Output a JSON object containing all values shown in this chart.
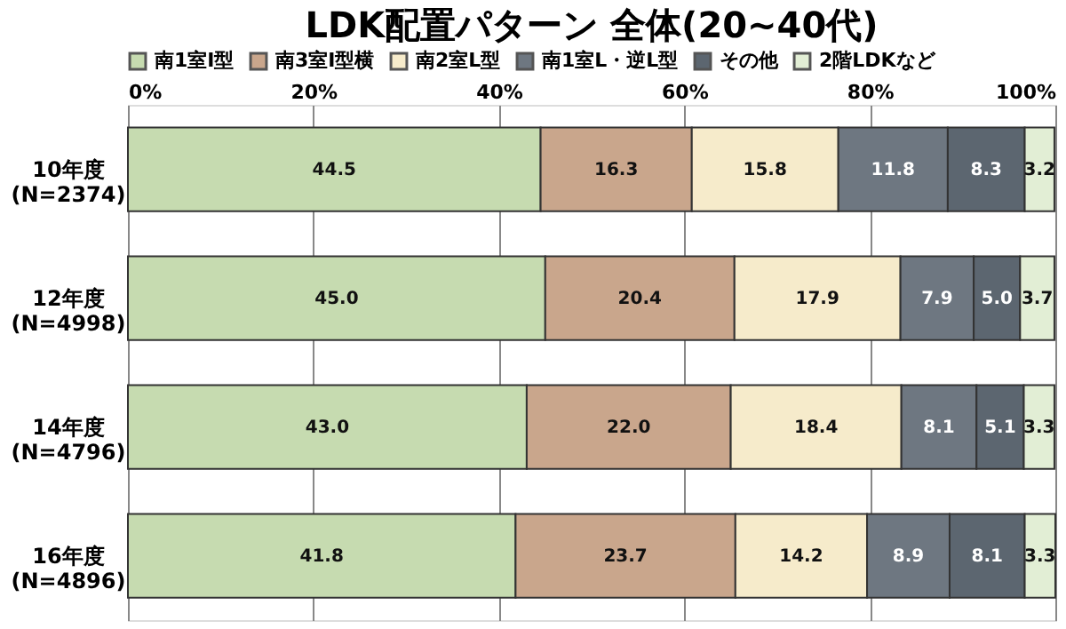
{
  "chart_data": {
    "type": "bar",
    "orientation": "horizontal",
    "stacked": true,
    "title": "LDK配置パターン 全体(20~40代)",
    "categories": [
      "10年度\n(N=2374)",
      "12年度\n(N=4998)",
      "14年度\n(N=4796)",
      "16年度\n(N=4896)"
    ],
    "series": [
      {
        "name": "南1室I型",
        "color": "#c6dbb0",
        "values": [
          44.5,
          45.0,
          43.0,
          41.8
        ],
        "value_labels": [
          "44.5",
          "45.0",
          "43.0",
          "41.8"
        ]
      },
      {
        "name": "南3室I型横",
        "color": "#c9a68c",
        "values": [
          16.3,
          20.4,
          22.0,
          23.7
        ],
        "value_labels": [
          "16.3",
          "20.4",
          "22.0",
          "23.7"
        ]
      },
      {
        "name": "南2室L型",
        "color": "#f6ebcb",
        "values": [
          15.8,
          17.9,
          18.4,
          14.2
        ],
        "value_labels": [
          "15.8",
          "17.9",
          "18.4",
          "14.2"
        ]
      },
      {
        "name": "南1室L・逆L型",
        "color": "#6e7781",
        "values": [
          11.8,
          7.9,
          8.1,
          8.9
        ],
        "value_labels": [
          "11.8",
          "7.9",
          "8.1",
          "8.9"
        ]
      },
      {
        "name": "その他",
        "color": "#5c6670",
        "values": [
          8.3,
          5.0,
          5.1,
          8.1
        ],
        "value_labels": [
          "8.3",
          "5.0",
          "5.1",
          "8.1"
        ]
      },
      {
        "name": "2階LDKなど",
        "color": "#e2eed5",
        "values": [
          3.2,
          3.7,
          3.3,
          3.3
        ],
        "value_labels": [
          "3.2",
          "3.7",
          "3.3",
          "3.3"
        ]
      }
    ],
    "xlim": [
      0,
      100
    ],
    "xticks": [
      {
        "value": 0,
        "label": "0%"
      },
      {
        "value": 20,
        "label": "20%"
      },
      {
        "value": 40,
        "label": "40%"
      },
      {
        "value": 60,
        "label": "60%"
      },
      {
        "value": 80,
        "label": "80%"
      },
      {
        "value": 100,
        "label": "100%"
      }
    ],
    "grid": "x",
    "legend": "top"
  }
}
